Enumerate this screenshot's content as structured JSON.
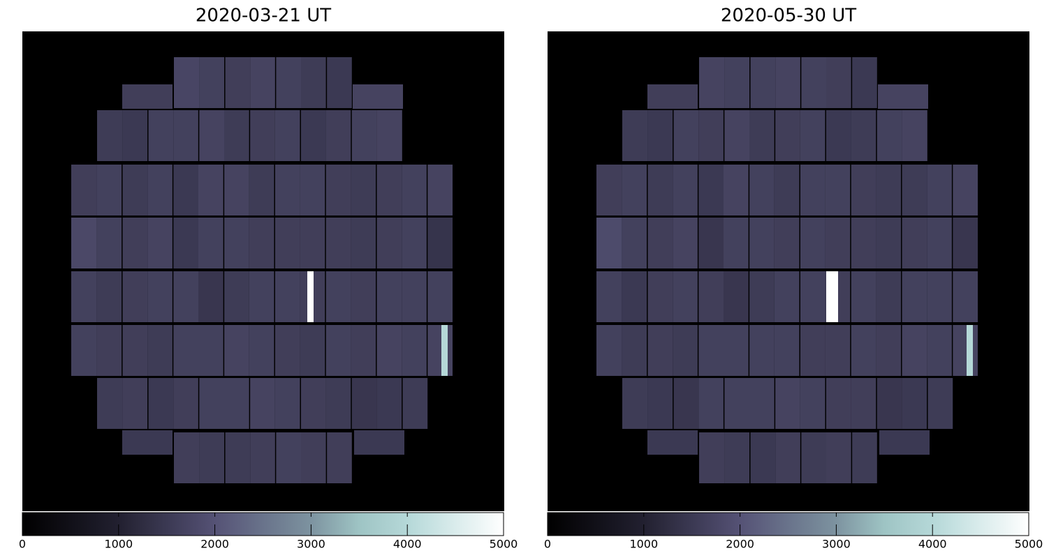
{
  "chart_data": [
    {
      "type": "ccd-image",
      "title": "2020-03-21 UT",
      "rows": [
        [
          1750,
          1650,
          1600,
          1700,
          1650,
          1550,
          1500
        ],
        [
          1550,
          1500,
          1650,
          1650,
          1700,
          1550,
          1600,
          1650,
          1500,
          1600,
          1650,
          1700
        ],
        [
          1600,
          1650,
          1550,
          1650,
          1500,
          1700,
          1700,
          1550,
          1650,
          1650,
          1600,
          1550,
          1600,
          1650,
          1700
        ],
        [
          1800,
          1650,
          1600,
          1700,
          1500,
          1650,
          1650,
          1600,
          1600,
          1600,
          1600,
          1550,
          1600,
          1650,
          1400
        ],
        [
          1650,
          1550,
          1600,
          1650,
          1650,
          1450,
          1550,
          1650,
          1650,
          1600,
          1650,
          1600,
          1650,
          1650,
          1650
        ],
        [
          1650,
          1600,
          1600,
          1550,
          1650,
          1650,
          1700,
          1650,
          1600,
          1550,
          1650,
          1600,
          1700,
          1650,
          1700
        ],
        [
          1550,
          1600,
          1500,
          1600,
          1650,
          1650,
          1700,
          1650,
          1600,
          1550,
          1450,
          1500,
          1550
        ],
        [
          1600,
          1550,
          1550,
          1600,
          1650,
          1600,
          1600
        ]
      ],
      "guide_ccds": [
        1600,
        1700,
        1500,
        1500
      ],
      "features": [
        5000,
        4000
      ],
      "clim": [
        0,
        5000
      ],
      "cticks": [
        0,
        1000,
        2000,
        3000,
        4000,
        5000
      ]
    },
    {
      "type": "ccd-image",
      "title": "2020-05-30 UT",
      "rows": [
        [
          1700,
          1650,
          1650,
          1700,
          1650,
          1600,
          1500
        ],
        [
          1550,
          1500,
          1650,
          1600,
          1700,
          1550,
          1600,
          1650,
          1500,
          1550,
          1650,
          1700
        ],
        [
          1600,
          1650,
          1550,
          1650,
          1500,
          1700,
          1650,
          1550,
          1650,
          1650,
          1600,
          1550,
          1550,
          1650,
          1700
        ],
        [
          1850,
          1650,
          1600,
          1700,
          1450,
          1650,
          1650,
          1600,
          1650,
          1600,
          1600,
          1550,
          1600,
          1650,
          1450
        ],
        [
          1650,
          1500,
          1600,
          1650,
          1600,
          1450,
          1550,
          1650,
          1650,
          1600,
          1650,
          1550,
          1650,
          1650,
          1650
        ],
        [
          1650,
          1550,
          1600,
          1550,
          1650,
          1650,
          1650,
          1650,
          1600,
          1600,
          1650,
          1600,
          1700,
          1650,
          1700
        ],
        [
          1550,
          1500,
          1450,
          1650,
          1650,
          1650,
          1700,
          1650,
          1600,
          1600,
          1450,
          1500,
          1550
        ],
        [
          1600,
          1550,
          1500,
          1600,
          1550,
          1600,
          1550
        ]
      ],
      "guide_ccds": [
        1600,
        1700,
        1500,
        1500
      ],
      "features": [
        5000,
        4000
      ],
      "clim": [
        0,
        5000
      ],
      "cticks": [
        0,
        1000,
        2000,
        3000,
        4000,
        5000
      ]
    }
  ]
}
